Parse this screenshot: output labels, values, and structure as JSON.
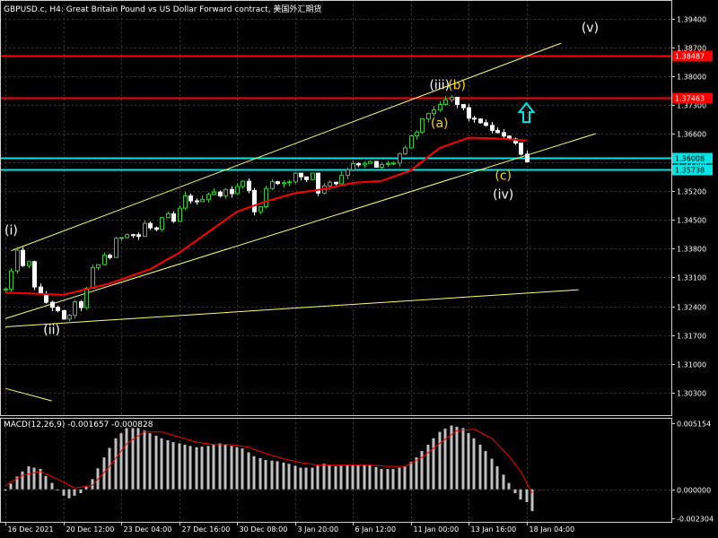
{
  "header": {
    "title": "GBPUSD.c, H4:  Great Britain Pound vs US Dollar Forward contract, 美国外汇期货"
  },
  "macd": {
    "title": "MACD(12,26,9) -0.001657 -0.000828"
  },
  "colors": {
    "background": "#000000",
    "grid": "#3a3a3a",
    "bull": "#32cd32",
    "bear": "#ffffff",
    "ma": "#ff0000",
    "channel": "#ffff66",
    "resistance": "#ff0000",
    "support": "#00e5e5",
    "arrow": "#00e5e5",
    "wave_white": "#ffffff",
    "wave_yellow": "#ffd700",
    "histogram": "#c0c0c0",
    "signal": "#ff0000"
  },
  "chart_data": [
    {
      "type": "candlestick",
      "symbol": "GBPUSD.c",
      "timeframe": "H4",
      "ylim": [
        1.2975,
        1.3985
      ],
      "yticks": [
        "1.39400",
        "1.38700",
        "1.38000",
        "1.37300",
        "1.36600",
        "1.35900",
        "1.35200",
        "1.34500",
        "1.33800",
        "1.33100",
        "1.32400",
        "1.31700",
        "1.31000",
        "1.30300"
      ],
      "xticks": [
        "16 Dec 2021",
        "20 Dec 12:00",
        "23 Dec 04:00",
        "27 Dec 16:00",
        "30 Dec 08:00",
        "3 Jan 20:00",
        "6 Jan 12:00",
        "11 Jan 00:00",
        "13 Jan 16:00",
        "18 Jan 04:00"
      ],
      "xtick_bars": [
        0,
        10,
        20,
        30,
        40,
        50,
        60,
        70,
        80,
        90
      ],
      "num_bars": 98,
      "close_path": [
        [
          0,
          1.328
        ],
        [
          1,
          1.332
        ],
        [
          2,
          1.338
        ],
        [
          3,
          1.3335
        ],
        [
          4,
          1.3345
        ],
        [
          5,
          1.329
        ],
        [
          6,
          1.3265
        ],
        [
          7,
          1.325
        ],
        [
          8,
          1.324
        ],
        [
          9,
          1.3225
        ],
        [
          10,
          1.3205
        ],
        [
          11,
          1.322
        ],
        [
          12,
          1.3245
        ],
        [
          13,
          1.324
        ],
        [
          14,
          1.328
        ],
        [
          15,
          1.333
        ],
        [
          16,
          1.334
        ],
        [
          17,
          1.3365
        ],
        [
          18,
          1.336
        ],
        [
          19,
          1.34
        ],
        [
          20,
          1.341
        ],
        [
          21,
          1.342
        ],
        [
          22,
          1.3415
        ],
        [
          23,
          1.341
        ],
        [
          24,
          1.344
        ],
        [
          25,
          1.343
        ],
        [
          26,
          1.3425
        ],
        [
          27,
          1.345
        ],
        [
          28,
          1.346
        ],
        [
          29,
          1.3445
        ],
        [
          30,
          1.3475
        ],
        [
          31,
          1.3505
        ],
        [
          32,
          1.35
        ],
        [
          33,
          1.349
        ],
        [
          34,
          1.3505
        ],
        [
          35,
          1.3515
        ],
        [
          36,
          1.352
        ],
        [
          37,
          1.3505
        ],
        [
          38,
          1.353
        ],
        [
          39,
          1.351
        ],
        [
          40,
          1.353
        ],
        [
          41,
          1.355
        ],
        [
          42,
          1.352
        ],
        [
          43,
          1.347
        ],
        [
          44,
          1.348
        ],
        [
          45,
          1.353
        ],
        [
          46,
          1.3545
        ],
        [
          47,
          1.354
        ],
        [
          48,
          1.3545
        ],
        [
          49,
          1.354
        ],
        [
          50,
          1.356
        ],
        [
          51,
          1.3555
        ],
        [
          52,
          1.355
        ],
        [
          53,
          1.3565
        ],
        [
          54,
          1.352
        ],
        [
          55,
          1.353
        ],
        [
          56,
          1.3545
        ],
        [
          57,
          1.354
        ],
        [
          58,
          1.356
        ],
        [
          59,
          1.3575
        ],
        [
          60,
          1.359
        ],
        [
          61,
          1.358
        ],
        [
          62,
          1.3585
        ],
        [
          63,
          1.359
        ],
        [
          64,
          1.3575
        ],
        [
          65,
          1.3585
        ],
        [
          66,
          1.3585
        ],
        [
          67,
          1.359
        ],
        [
          68,
          1.361
        ],
        [
          69,
          1.362
        ],
        [
          70,
          1.365
        ],
        [
          71,
          1.3665
        ],
        [
          72,
          1.369
        ],
        [
          73,
          1.371
        ],
        [
          74,
          1.372
        ],
        [
          75,
          1.3725
        ],
        [
          76,
          1.374
        ],
        [
          77,
          1.3745
        ],
        [
          78,
          1.373
        ],
        [
          79,
          1.372
        ],
        [
          80,
          1.37
        ],
        [
          81,
          1.369
        ],
        [
          82,
          1.369
        ],
        [
          83,
          1.3675
        ],
        [
          84,
          1.367
        ],
        [
          85,
          1.366
        ],
        [
          86,
          1.365
        ],
        [
          87,
          1.365
        ],
        [
          88,
          1.364
        ],
        [
          89,
          1.361
        ],
        [
          90,
          1.359
        ]
      ],
      "moving_average": [
        [
          0,
          1.3273
        ],
        [
          10,
          1.3268
        ],
        [
          18,
          1.3295
        ],
        [
          25,
          1.333
        ],
        [
          30,
          1.337
        ],
        [
          35,
          1.342
        ],
        [
          40,
          1.347
        ],
        [
          45,
          1.3495
        ],
        [
          50,
          1.3515
        ],
        [
          55,
          1.3525
        ],
        [
          60,
          1.354
        ],
        [
          65,
          1.3545
        ],
        [
          70,
          1.357
        ],
        [
          75,
          1.3625
        ],
        [
          80,
          1.365
        ],
        [
          85,
          1.3648
        ],
        [
          90,
          1.3643
        ]
      ],
      "horizontal_levels": [
        {
          "price": 1.38487,
          "label": "1.38487",
          "kind": "resistance"
        },
        {
          "price": 1.37463,
          "label": "1.37463",
          "kind": "resistance"
        },
        {
          "price": 1.36008,
          "label": "1.36008",
          "kind": "support"
        },
        {
          "price": 1.35738,
          "label": "1.35738",
          "kind": "support"
        }
      ],
      "trendlines": [
        {
          "from": [
            1,
            1.3375
          ],
          "to": [
            96,
            1.388
          ]
        },
        {
          "from": [
            0,
            1.321
          ],
          "to": [
            102,
            1.366
          ]
        },
        {
          "from": [
            0,
            1.319
          ],
          "to": [
            99,
            1.328
          ]
        },
        {
          "from": [
            0,
            1.304
          ],
          "to": [
            8,
            1.301
          ]
        }
      ],
      "wave_labels": [
        {
          "text": "(i)",
          "bar": 1,
          "price": 1.3415,
          "color": "white"
        },
        {
          "text": "(ii)",
          "bar": 8,
          "price": 1.3172,
          "color": "white"
        },
        {
          "text": "(iii)",
          "bar": 75,
          "price": 1.3768,
          "color": "white"
        },
        {
          "text": "(b)",
          "bar": 78,
          "price": 1.3768,
          "color": "yellow"
        },
        {
          "text": "(a)",
          "bar": 75,
          "price": 1.3675,
          "color": "yellow"
        },
        {
          "text": "(c)",
          "bar": 86,
          "price": 1.3548,
          "color": "yellow"
        },
        {
          "text": "(iv)",
          "bar": 86,
          "price": 1.3502,
          "color": "white"
        },
        {
          "text": "(v)",
          "bar": 101,
          "price": 1.3908,
          "color": "white"
        }
      ],
      "arrow_up": {
        "bar": 90,
        "price": 1.371
      }
    },
    {
      "type": "bar",
      "indicator": "MACD(12,26,9)",
      "main": -0.001657,
      "signal": -0.000828,
      "ylim": [
        -0.00255,
        0.0056
      ],
      "yticks": [
        "0.005154",
        "0.000000",
        "-0.002304"
      ],
      "histogram_path": [
        [
          0,
          -0.0001
        ],
        [
          2,
          0.001
        ],
        [
          4,
          0.0018
        ],
        [
          6,
          0.0016
        ],
        [
          8,
          0.0005
        ],
        [
          10,
          -0.0005
        ],
        [
          11,
          -0.0007
        ],
        [
          13,
          -0.0003
        ],
        [
          15,
          0.0008
        ],
        [
          17,
          0.0025
        ],
        [
          19,
          0.004
        ],
        [
          21,
          0.0048
        ],
        [
          23,
          0.0048
        ],
        [
          25,
          0.0044
        ],
        [
          27,
          0.004
        ],
        [
          29,
          0.0037
        ],
        [
          31,
          0.0035
        ],
        [
          33,
          0.0033
        ],
        [
          35,
          0.0034
        ],
        [
          37,
          0.0036
        ],
        [
          39,
          0.0034
        ],
        [
          41,
          0.0032
        ],
        [
          43,
          0.0026
        ],
        [
          45,
          0.0023
        ],
        [
          47,
          0.0022
        ],
        [
          49,
          0.002
        ],
        [
          51,
          0.0017
        ],
        [
          53,
          0.0017
        ],
        [
          55,
          0.002
        ],
        [
          57,
          0.0018
        ],
        [
          59,
          0.0019
        ],
        [
          61,
          0.0019
        ],
        [
          63,
          0.0019
        ],
        [
          65,
          0.0016
        ],
        [
          67,
          0.0016
        ],
        [
          69,
          0.0018
        ],
        [
          71,
          0.0025
        ],
        [
          73,
          0.0035
        ],
        [
          75,
          0.0045
        ],
        [
          77,
          0.005
        ],
        [
          79,
          0.0048
        ],
        [
          81,
          0.004
        ],
        [
          83,
          0.003
        ],
        [
          85,
          0.0018
        ],
        [
          87,
          0.0005
        ],
        [
          88,
          -0.0003
        ],
        [
          89,
          -0.0008
        ],
        [
          90,
          -0.001
        ],
        [
          91,
          -0.0017
        ]
      ],
      "signal_path": [
        [
          0,
          0.0003
        ],
        [
          3,
          0.0011
        ],
        [
          6,
          0.0014
        ],
        [
          9,
          0.0008
        ],
        [
          12,
          0.0001
        ],
        [
          15,
          0.0003
        ],
        [
          18,
          0.0018
        ],
        [
          21,
          0.0036
        ],
        [
          24,
          0.0045
        ],
        [
          27,
          0.0045
        ],
        [
          30,
          0.0041
        ],
        [
          33,
          0.0037
        ],
        [
          36,
          0.0035
        ],
        [
          39,
          0.0035
        ],
        [
          42,
          0.0033
        ],
        [
          45,
          0.0028
        ],
        [
          48,
          0.0024
        ],
        [
          51,
          0.0021
        ],
        [
          54,
          0.0019
        ],
        [
          57,
          0.0019
        ],
        [
          60,
          0.0019
        ],
        [
          63,
          0.0019
        ],
        [
          66,
          0.0018
        ],
        [
          69,
          0.0018
        ],
        [
          72,
          0.0025
        ],
        [
          75,
          0.0036
        ],
        [
          78,
          0.0046
        ],
        [
          81,
          0.0047
        ],
        [
          84,
          0.004
        ],
        [
          87,
          0.0026
        ],
        [
          89,
          0.0014
        ],
        [
          91,
          -0.0003
        ]
      ]
    }
  ]
}
